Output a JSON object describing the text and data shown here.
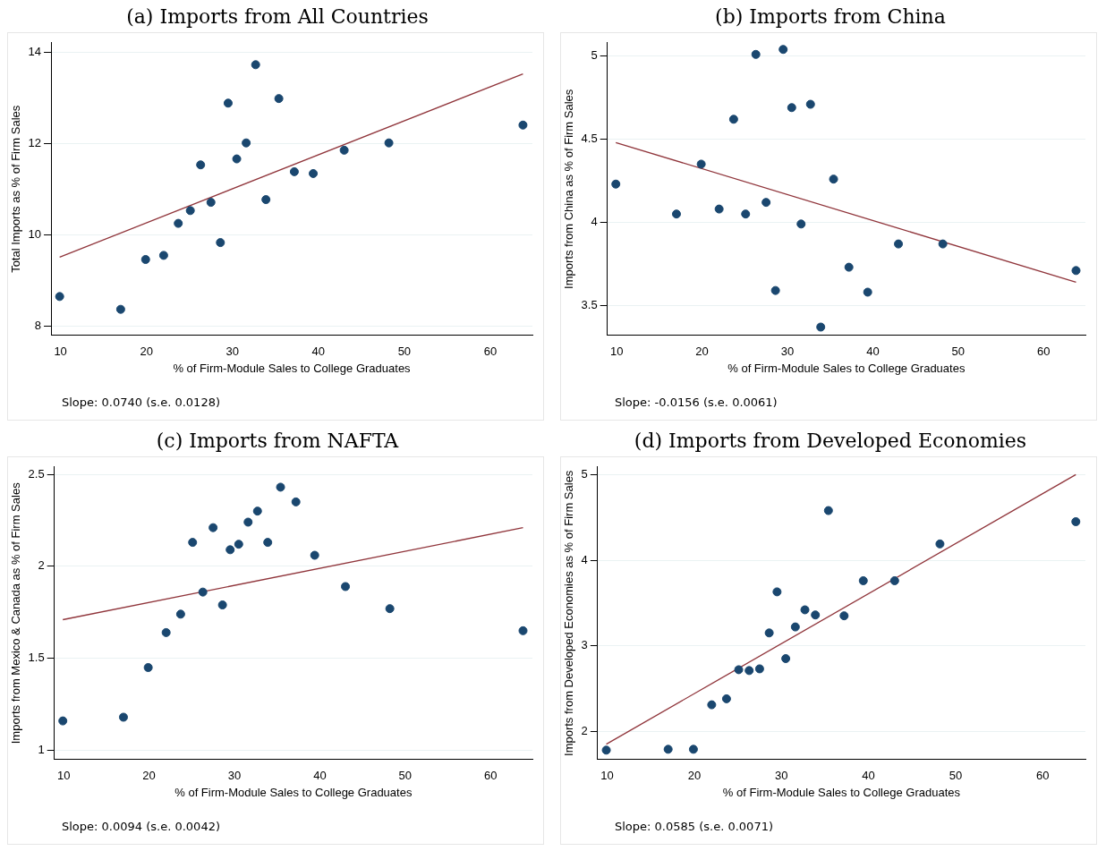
{
  "chart_data": [
    {
      "type": "scatter",
      "title": "(a) Imports from All Countries",
      "xlabel": "% of Firm-Module Sales to College Graduates",
      "ylabel": "Total Imports as % of Firm Sales",
      "annotations": [
        "Slope: 0.0740 (s.e. 0.0128)"
      ],
      "xlim": [
        8.9,
        64.9
      ],
      "xticks": [
        10,
        20,
        30,
        40,
        50,
        60
      ],
      "ylim": [
        7.8,
        14.2
      ],
      "yticks": [
        8,
        10,
        12,
        14
      ],
      "grid": "y",
      "series": [
        {
          "type": "scatter",
          "color": "#1a476f",
          "x": [
            9.9,
            17.0,
            19.9,
            22.0,
            23.7,
            25.1,
            26.3,
            27.5,
            28.6,
            29.5,
            30.5,
            31.6,
            32.7,
            33.9,
            35.4,
            37.2,
            39.4,
            43.0,
            48.2,
            63.8
          ],
          "values": [
            8.65,
            8.37,
            9.46,
            9.55,
            10.25,
            10.53,
            11.53,
            10.71,
            9.83,
            12.88,
            11.66,
            12.01,
            13.72,
            10.77,
            12.98,
            11.38,
            11.34,
            11.85,
            12.01,
            12.4
          ]
        },
        {
          "type": "line",
          "color": "#90353b",
          "x": [
            9.9,
            63.8
          ],
          "values": [
            9.51,
            13.52
          ]
        }
      ]
    },
    {
      "type": "scatter",
      "title": "(b) Imports from China",
      "xlabel": "% of Firm-Module Sales to College Graduates",
      "ylabel": "Imports from China as % of Firm Sales",
      "annotations": [
        "Slope: -0.0156 (s.e. 0.0061)"
      ],
      "xlim": [
        8.9,
        64.9
      ],
      "xticks": [
        10,
        20,
        30,
        40,
        50,
        60
      ],
      "ylim": [
        3.32,
        5.08
      ],
      "yticks": [
        3.5,
        4,
        4.5,
        5
      ],
      "grid": "y",
      "series": [
        {
          "type": "scatter",
          "color": "#1a476f",
          "x": [
            9.9,
            17.0,
            19.9,
            22.0,
            23.7,
            25.1,
            26.3,
            27.5,
            28.6,
            29.5,
            30.5,
            31.6,
            32.7,
            33.9,
            35.4,
            37.2,
            39.4,
            43.0,
            48.2,
            63.8
          ],
          "values": [
            4.23,
            4.05,
            4.35,
            4.08,
            4.62,
            4.05,
            5.01,
            4.12,
            3.59,
            5.04,
            4.69,
            3.99,
            4.71,
            3.37,
            4.26,
            3.73,
            3.58,
            3.87,
            3.87,
            3.71
          ]
        },
        {
          "type": "line",
          "color": "#90353b",
          "x": [
            9.9,
            63.8
          ],
          "values": [
            4.48,
            3.64
          ]
        }
      ]
    },
    {
      "type": "scatter",
      "title": "(c) Imports from NAFTA",
      "xlabel": "% of Firm-Module Sales to College Graduates",
      "ylabel": "Imports from Mexico & Canada as % of Firm Sales",
      "annotations": [
        "Slope: 0.0094 (s.e. 0.0042)"
      ],
      "xlim": [
        8.9,
        64.9
      ],
      "xticks": [
        10,
        20,
        30,
        40,
        50,
        60
      ],
      "ylim": [
        0.95,
        2.54
      ],
      "yticks": [
        1,
        1.5,
        2,
        2.5
      ],
      "grid": "y",
      "series": [
        {
          "type": "scatter",
          "color": "#1a476f",
          "x": [
            9.9,
            17.0,
            19.9,
            22.0,
            23.7,
            25.1,
            26.3,
            27.5,
            28.6,
            29.5,
            30.5,
            31.6,
            32.7,
            33.9,
            35.4,
            37.2,
            39.4,
            43.0,
            48.2,
            63.8
          ],
          "values": [
            1.16,
            1.18,
            1.45,
            1.64,
            1.74,
            2.13,
            1.86,
            2.21,
            1.79,
            2.09,
            2.12,
            2.24,
            2.3,
            2.13,
            2.43,
            2.35,
            2.06,
            1.89,
            1.77,
            1.65
          ]
        },
        {
          "type": "line",
          "color": "#90353b",
          "x": [
            9.9,
            63.8
          ],
          "values": [
            1.71,
            2.21
          ]
        }
      ]
    },
    {
      "type": "scatter",
      "title": "(d) Imports from Developed Economies",
      "xlabel": "% of Firm-Module Sales to College Graduates",
      "ylabel": "Imports from Developed Economies as % of Firm Sales",
      "annotations": [
        "Slope: 0.0585 (s.e. 0.0071)"
      ],
      "xlim": [
        8.9,
        64.9
      ],
      "xticks": [
        10,
        20,
        30,
        40,
        50,
        60
      ],
      "ylim": [
        1.67,
        5.09
      ],
      "yticks": [
        2,
        3,
        4,
        5
      ],
      "grid": "y",
      "series": [
        {
          "type": "scatter",
          "color": "#1a476f",
          "x": [
            9.9,
            17.0,
            19.9,
            22.0,
            23.7,
            25.1,
            26.3,
            27.5,
            28.6,
            29.5,
            30.5,
            31.6,
            32.7,
            33.9,
            35.4,
            37.2,
            39.4,
            43.0,
            48.2,
            63.8
          ],
          "values": [
            1.78,
            1.79,
            1.79,
            2.31,
            2.38,
            2.72,
            2.71,
            2.73,
            3.15,
            3.63,
            2.85,
            3.22,
            3.42,
            3.36,
            4.58,
            3.35,
            3.76,
            3.76,
            4.19,
            4.45
          ]
        },
        {
          "type": "line",
          "color": "#90353b",
          "x": [
            9.9,
            63.8
          ],
          "values": [
            1.85,
            5.0
          ]
        }
      ]
    }
  ]
}
